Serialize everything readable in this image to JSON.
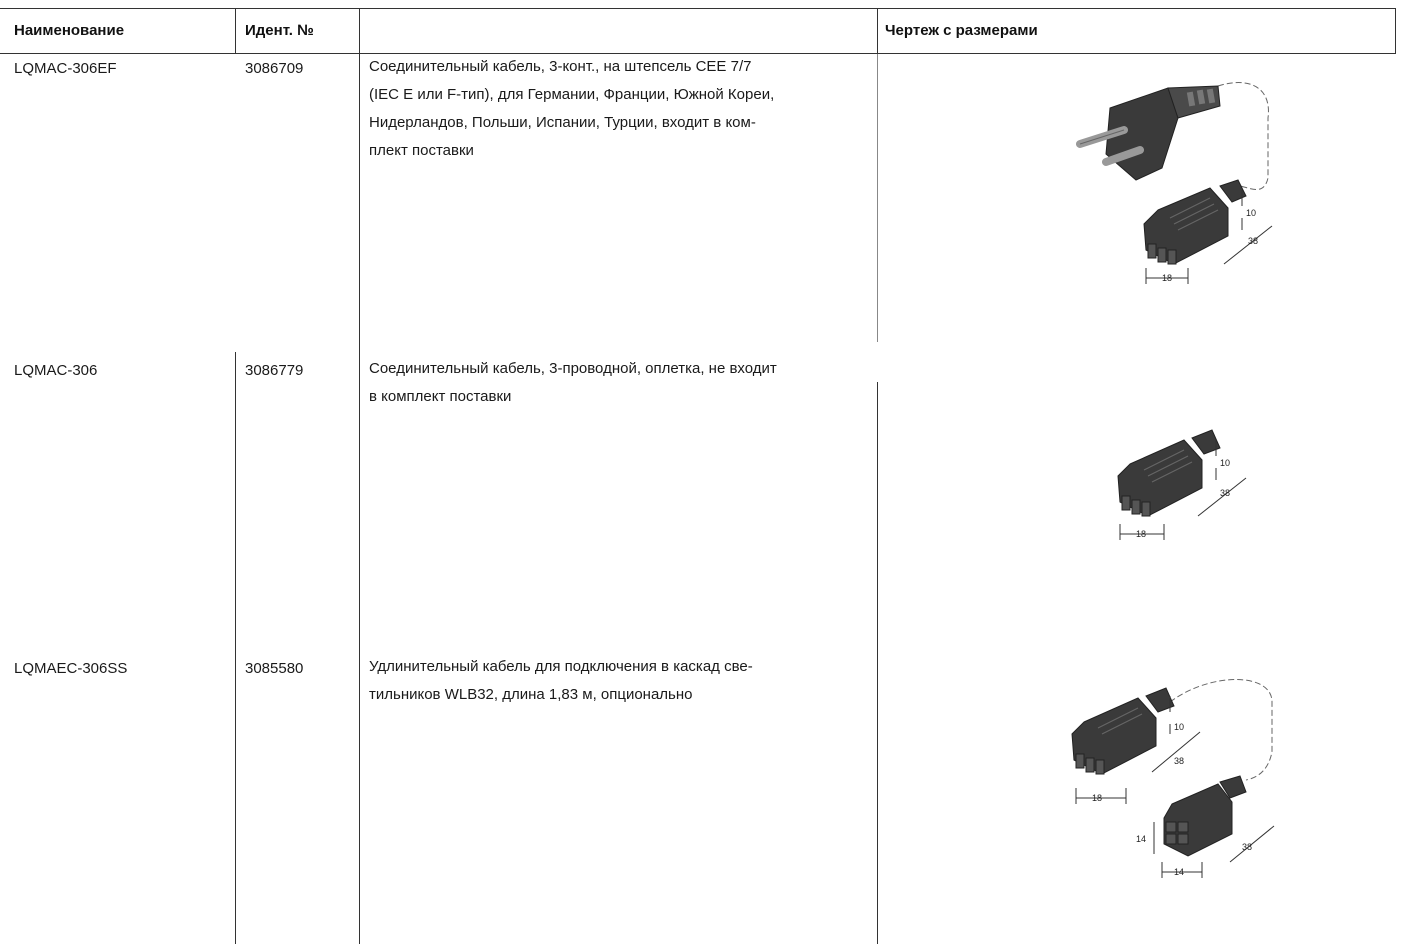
{
  "header": {
    "name": "Наименование",
    "ident": "Идент. №",
    "description": "",
    "drawing": "Чертеж с размерами"
  },
  "rows": [
    {
      "name": "LQMAC-306EF",
      "ident": "3086709",
      "description_lines": [
        "Соединительный кабель, 3-конт., на штепсель CEE 7/7",
        "(IEC E или F-тип), для Германии, Франции, Южной Кореи,",
        "Нидерландов, Польши, Испании, Турции, входит в ком-",
        "плект поставки"
      ],
      "dims": {
        "a": "10",
        "b": "38",
        "c": "18"
      }
    },
    {
      "name": "LQMAC-306",
      "ident": "3086779",
      "description_lines": [
        "Соединительный кабель, 3-проводной, оплетка, не входит",
        "в комплект поставки"
      ],
      "dims": {
        "a": "10",
        "b": "38",
        "c": "18"
      }
    },
    {
      "name": "LQMAEC-306SS",
      "ident": "3085580",
      "description_lines": [
        "Удлинительный кабель для подключения в каскад све-",
        "тильников WLB32, длина 1,83 м, опционально"
      ],
      "dims": {
        "a": "10",
        "b": "38",
        "c": "18",
        "d": "14",
        "e": "38",
        "f": "14"
      }
    }
  ]
}
